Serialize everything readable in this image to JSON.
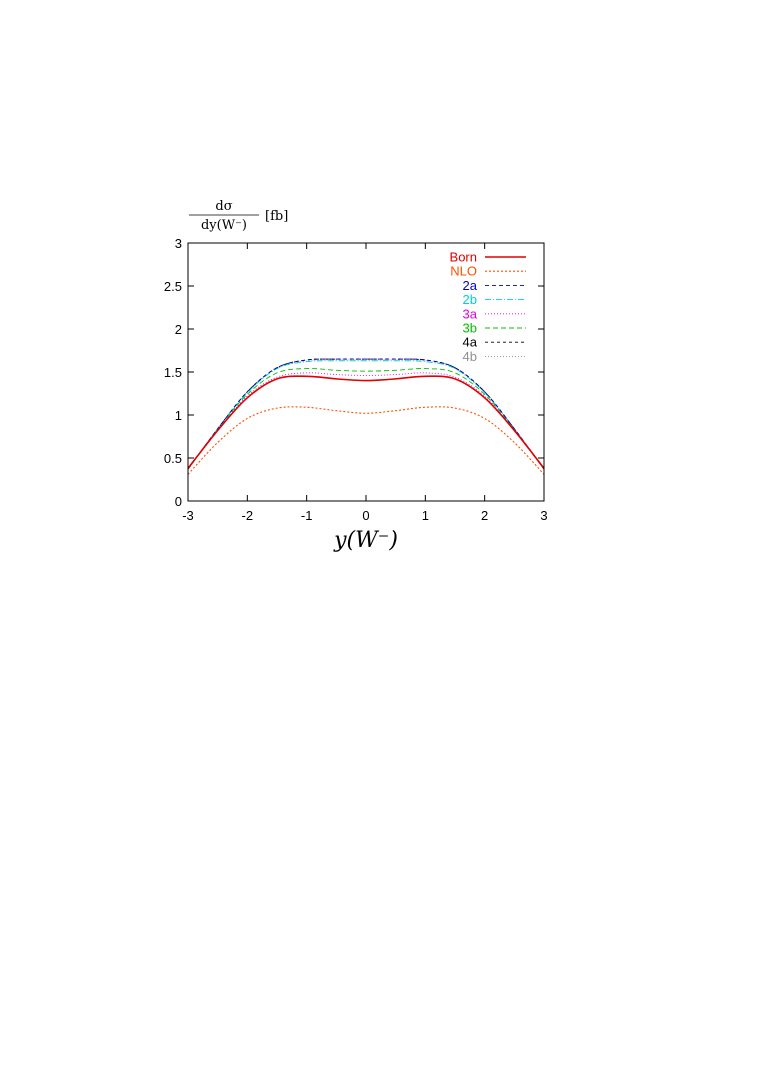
{
  "chart_data": {
    "type": "line",
    "ylabel": {
      "numerator": "dσ",
      "denominator": "dy(W⁻)",
      "unit": "[fb]"
    },
    "xlabel": "y(W⁻)",
    "xlim": [
      -3,
      3
    ],
    "ylim": [
      0,
      3
    ],
    "xticks": [
      -3,
      -2,
      -1,
      0,
      1,
      2,
      3
    ],
    "yticks": [
      0,
      0.5,
      1,
      1.5,
      2,
      2.5,
      3
    ],
    "grid": false,
    "legend_position": "top-right",
    "x": [
      -3,
      -2.5,
      -2,
      -1.5,
      -1,
      -0.5,
      0,
      0.5,
      1,
      1.5,
      2,
      2.5,
      3
    ],
    "series": [
      {
        "name": "Born",
        "color": "#e00000",
        "dash": "",
        "width": 1.6,
        "values": [
          0.38,
          0.82,
          1.2,
          1.42,
          1.45,
          1.42,
          1.4,
          1.42,
          1.45,
          1.42,
          1.2,
          0.82,
          0.38
        ]
      },
      {
        "name": "NLO",
        "color": "#ff5000",
        "dash": "2,2",
        "width": 1.1,
        "values": [
          0.31,
          0.68,
          0.96,
          1.08,
          1.09,
          1.05,
          1.02,
          1.05,
          1.09,
          1.08,
          0.96,
          0.68,
          0.31
        ]
      },
      {
        "name": "2a",
        "color": "#0000cc",
        "dash": "4,3",
        "width": 0.9,
        "values": [
          0.37,
          0.84,
          1.27,
          1.55,
          1.64,
          1.65,
          1.65,
          1.65,
          1.64,
          1.55,
          1.27,
          0.84,
          0.37
        ]
      },
      {
        "name": "2b",
        "color": "#00d0d0",
        "dash": "6,2,1,2",
        "width": 0.9,
        "values": [
          0.37,
          0.84,
          1.26,
          1.54,
          1.62,
          1.63,
          1.63,
          1.63,
          1.62,
          1.54,
          1.26,
          0.84,
          0.37
        ]
      },
      {
        "name": "3a",
        "color": "#e000e0",
        "dash": "1,2",
        "width": 0.9,
        "values": [
          0.37,
          0.82,
          1.22,
          1.44,
          1.49,
          1.47,
          1.46,
          1.47,
          1.49,
          1.44,
          1.22,
          0.82,
          0.37
        ]
      },
      {
        "name": "3b",
        "color": "#00c000",
        "dash": "5,3",
        "width": 0.9,
        "values": [
          0.37,
          0.83,
          1.24,
          1.49,
          1.54,
          1.52,
          1.51,
          1.52,
          1.54,
          1.49,
          1.24,
          0.83,
          0.37
        ]
      },
      {
        "name": "4a",
        "color": "#000000",
        "dash": "3,3",
        "width": 0.9,
        "values": [
          0.37,
          0.84,
          1.27,
          1.55,
          1.64,
          1.65,
          1.65,
          1.65,
          1.64,
          1.55,
          1.27,
          0.84,
          0.37
        ]
      },
      {
        "name": "4b",
        "color": "#909090",
        "dash": "1,2",
        "width": 0.9,
        "values": [
          0.37,
          0.84,
          1.26,
          1.54,
          1.63,
          1.64,
          1.64,
          1.64,
          1.63,
          1.54,
          1.26,
          0.84,
          0.37
        ]
      }
    ]
  }
}
